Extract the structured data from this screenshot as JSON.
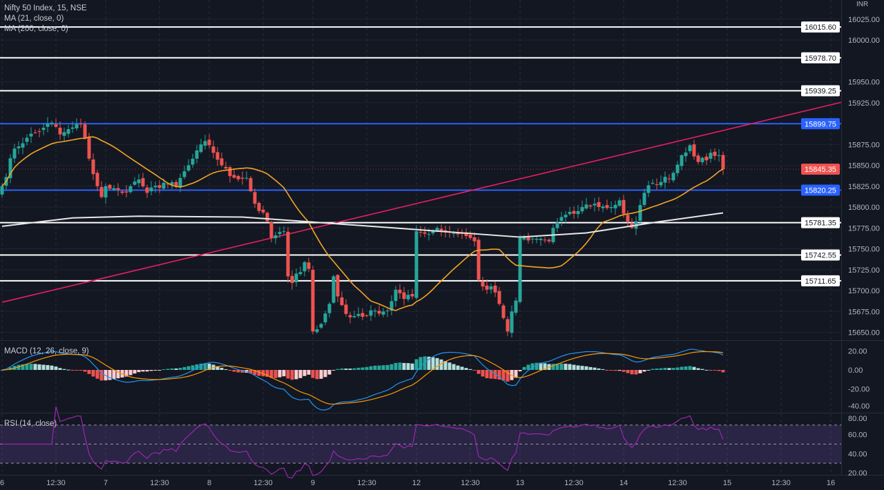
{
  "chart_data": {
    "type": "candlestick",
    "title": "Nifty 50 Index, 15, NSE",
    "currency": "INR",
    "bars_per_day": 25,
    "legend": {
      "ma21": "MA (21, close, 0)",
      "ma200": "MA (200, close, 0)",
      "macd": "MACD (12, 26, close, 9)",
      "rsi": "RSI (14, close)"
    },
    "y_ticks": [
      16025,
      16000,
      15950,
      15925,
      15875,
      15850,
      15825,
      15800,
      15775,
      15750,
      15725,
      15700,
      15675,
      15650
    ],
    "y_tick_labels": [
      "16025.00",
      "16000.00",
      "15950.00",
      "15925.00",
      "15875.00",
      "15850.00",
      "15825.00",
      "15800.00",
      "15775.00",
      "15750.00",
      "15725.00",
      "15700.00",
      "15675.00",
      "15650.00"
    ],
    "macd_ticks": [
      20,
      0,
      -20,
      -40
    ],
    "macd_tick_labels": [
      "20.00",
      "0.00",
      "-20.00",
      "-40.00"
    ],
    "rsi_ticks": [
      80,
      60,
      40,
      20
    ],
    "rsi_tick_labels": [
      "80.00",
      "60.00",
      "40.00",
      "20.00"
    ],
    "rsi_band": [
      30,
      70
    ],
    "x_ticks": [
      {
        "bar": 0,
        "label": "6"
      },
      {
        "bar": 13,
        "label": "12:30"
      },
      {
        "bar": 25,
        "label": "7"
      },
      {
        "bar": 38,
        "label": "12:30"
      },
      {
        "bar": 50,
        "label": "8"
      },
      {
        "bar": 63,
        "label": "12:30"
      },
      {
        "bar": 75,
        "label": "9"
      },
      {
        "bar": 88,
        "label": "12:30"
      },
      {
        "bar": 100,
        "label": "12"
      },
      {
        "bar": 113,
        "label": "12:30"
      },
      {
        "bar": 125,
        "label": "13"
      },
      {
        "bar": 138,
        "label": "12:30"
      },
      {
        "bar": 150,
        "label": "14"
      },
      {
        "bar": 163,
        "label": "12:30"
      },
      {
        "bar": 175,
        "label": "15"
      },
      {
        "bar": 188,
        "label": "12:30"
      },
      {
        "bar": 200,
        "label": "16"
      }
    ],
    "close_keypoints": [
      [
        0,
        15825
      ],
      [
        3,
        15870
      ],
      [
        6,
        15883
      ],
      [
        10,
        15895
      ],
      [
        12,
        15901
      ],
      [
        14,
        15887
      ],
      [
        19,
        15899
      ],
      [
        20,
        15883
      ],
      [
        21,
        15858
      ],
      [
        23,
        15825
      ],
      [
        24,
        15812
      ],
      [
        25,
        15825
      ],
      [
        29,
        15817
      ],
      [
        31,
        15825
      ],
      [
        33,
        15833
      ],
      [
        35,
        15817
      ],
      [
        39,
        15829
      ],
      [
        42,
        15825
      ],
      [
        45,
        15850
      ],
      [
        49,
        15879
      ],
      [
        50,
        15874
      ],
      [
        53,
        15850
      ],
      [
        55,
        15837
      ],
      [
        59,
        15835
      ],
      [
        61,
        15804
      ],
      [
        64,
        15783
      ],
      [
        65,
        15763
      ],
      [
        68,
        15771
      ],
      [
        69,
        15717
      ],
      [
        70,
        15709
      ],
      [
        73,
        15734
      ],
      [
        74,
        15726
      ],
      [
        75,
        15651
      ],
      [
        77,
        15660
      ],
      [
        79,
        15684
      ],
      [
        80,
        15717
      ],
      [
        81,
        15693
      ],
      [
        83,
        15672
      ],
      [
        84,
        15668
      ],
      [
        86,
        15672
      ],
      [
        88,
        15670
      ],
      [
        90,
        15676
      ],
      [
        93,
        15676
      ],
      [
        95,
        15701
      ],
      [
        97,
        15690
      ],
      [
        99,
        15693
      ],
      [
        100,
        15771
      ],
      [
        102,
        15768
      ],
      [
        105,
        15775
      ],
      [
        108,
        15770
      ],
      [
        111,
        15768
      ],
      [
        114,
        15759
      ],
      [
        115,
        15713
      ],
      [
        117,
        15701
      ],
      [
        118,
        15705
      ],
      [
        120,
        15684
      ],
      [
        122,
        15651
      ],
      [
        123,
        15675
      ],
      [
        124,
        15688
      ],
      [
        125,
        15763
      ],
      [
        127,
        15760
      ],
      [
        129,
        15762
      ],
      [
        132,
        15759
      ],
      [
        133,
        15775
      ],
      [
        135,
        15788
      ],
      [
        138,
        15792
      ],
      [
        140,
        15800
      ],
      [
        143,
        15804
      ],
      [
        144,
        15800
      ],
      [
        147,
        15800
      ],
      [
        149,
        15808
      ],
      [
        150,
        15792
      ],
      [
        152,
        15775
      ],
      [
        153,
        15783
      ],
      [
        155,
        15817
      ],
      [
        157,
        15829
      ],
      [
        159,
        15830
      ],
      [
        162,
        15841
      ],
      [
        164,
        15862
      ],
      [
        166,
        15874
      ],
      [
        168,
        15854
      ],
      [
        170,
        15856
      ],
      [
        171,
        15865
      ],
      [
        173,
        15862
      ],
      [
        174,
        15845.35
      ]
    ],
    "ma200_keypoints": [
      [
        0,
        15777
      ],
      [
        17,
        15787
      ],
      [
        33,
        15789
      ],
      [
        58,
        15788
      ],
      [
        75,
        15782
      ],
      [
        100,
        15773
      ],
      [
        125,
        15764
      ],
      [
        141,
        15769
      ],
      [
        158,
        15782
      ],
      [
        174,
        15793
      ]
    ],
    "horizontal_levels": [
      {
        "price": 16015.6,
        "label": "16015.60",
        "color": "#ffffff"
      },
      {
        "price": 15978.7,
        "label": "15978.70",
        "color": "#ffffff"
      },
      {
        "price": 15939.25,
        "label": "15939.25",
        "color": "#ffffff"
      },
      {
        "price": 15899.75,
        "label": "15899.75",
        "color": "#2962ff"
      },
      {
        "price": 15820.25,
        "label": "15820.25",
        "color": "#2962ff"
      },
      {
        "price": 15781.35,
        "label": "15781.35",
        "color": "#ffffff"
      },
      {
        "price": 15742.55,
        "label": "15742.55",
        "color": "#ffffff"
      },
      {
        "price": 15711.65,
        "label": "15711.65",
        "color": "#ffffff"
      }
    ],
    "last_price": {
      "price": 15845.35,
      "label": "15845.35",
      "color": "#ef5350"
    },
    "trendline": {
      "from": [
        0,
        15686
      ],
      "to": [
        203,
        15926
      ],
      "color": "#e91e63"
    },
    "colors": {
      "up": "#26a69a",
      "down": "#ef5350",
      "ma21": "#f5a623",
      "ma200": "#e8e8e8",
      "macd": "#2196f3",
      "signal": "#ff9800",
      "rsi": "#9c27b0"
    }
  }
}
